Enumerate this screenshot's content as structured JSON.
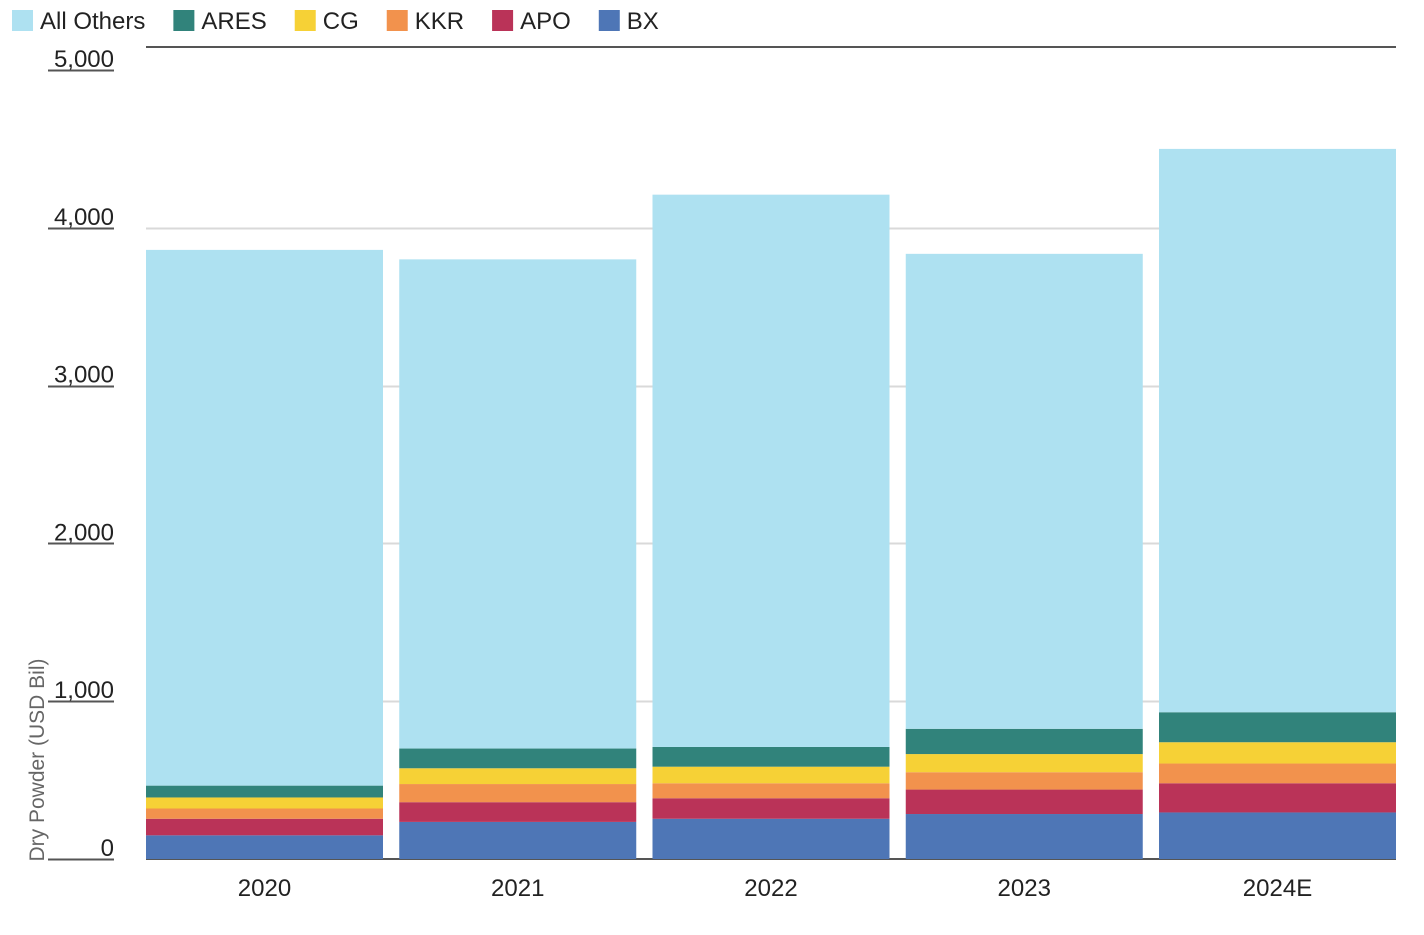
{
  "chart_data": {
    "type": "bar",
    "stacked": true,
    "title": "",
    "xlabel": "",
    "ylabel": "Dry Powder (USD Bil)",
    "ylim": [
      0,
      5000
    ],
    "yticks": [
      0,
      1000,
      2000,
      3000,
      4000,
      5000
    ],
    "ytick_labels": [
      "0",
      "1,000",
      "2,000",
      "3,000",
      "4,000",
      "5,000"
    ],
    "grid": true,
    "legend_position": "top-left",
    "categories": [
      "2020",
      "2021",
      "2022",
      "2023",
      "2024E"
    ],
    "series": [
      {
        "name": "BX",
        "color": "#4E76B6",
        "values": [
          150,
          235,
          255,
          285,
          295
        ]
      },
      {
        "name": "APO",
        "color": "#BA3358",
        "values": [
          105,
          125,
          130,
          155,
          185
        ]
      },
      {
        "name": "KKR",
        "color": "#F2924D",
        "values": [
          65,
          115,
          95,
          110,
          125
        ]
      },
      {
        "name": "CG",
        "color": "#F6D136",
        "values": [
          70,
          100,
          105,
          115,
          135
        ]
      },
      {
        "name": "ARES",
        "color": "#31837B",
        "values": [
          75,
          125,
          125,
          160,
          190
        ]
      },
      {
        "name": "All Others",
        "color": "#AEE1F1",
        "values": [
          3395,
          3100,
          3500,
          3010,
          3570
        ]
      }
    ],
    "legend_order": [
      "All Others",
      "ARES",
      "CG",
      "KKR",
      "APO",
      "BX"
    ]
  }
}
